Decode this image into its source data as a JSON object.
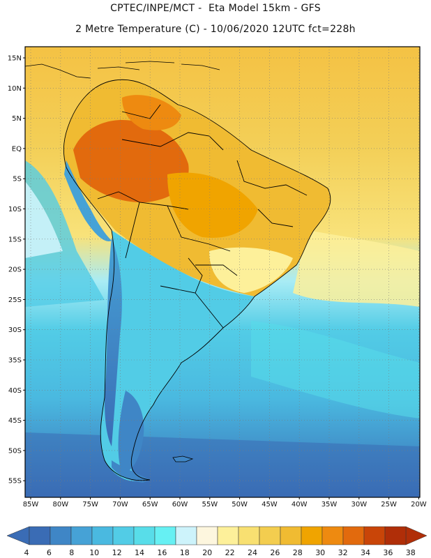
{
  "header": {
    "line1": "CPTEC/INPE/MCT -  Eta Model 15km - GFS",
    "line2": "2 Metre Temperature (C) - 10/06/2020 12UTC fct=228h"
  },
  "map": {
    "lat_labels": [
      "15N",
      "10N",
      "5N",
      "EQ",
      "5S",
      "10S",
      "15S",
      "20S",
      "25S",
      "30S",
      "35S",
      "40S",
      "45S",
      "50S",
      "55S"
    ],
    "lon_labels": [
      "85W",
      "80W",
      "75W",
      "70W",
      "65W",
      "60W",
      "55W",
      "50W",
      "45W",
      "40W",
      "35W",
      "30W",
      "25W",
      "20W"
    ]
  },
  "colorbar": {
    "labels": [
      "4",
      "6",
      "8",
      "10",
      "12",
      "14",
      "16",
      "18",
      "20",
      "22",
      "24",
      "26",
      "28",
      "30",
      "32",
      "34",
      "36",
      "38"
    ],
    "colors": [
      "#3a6cb5",
      "#3f86c6",
      "#46a2d6",
      "#4ab9e0",
      "#52cce6",
      "#58dde9",
      "#66f0f3",
      "#cdf3fb",
      "#fdf6de",
      "#fdf09a",
      "#f8e071",
      "#f3cd4f",
      "#f0bb32",
      "#f0a400",
      "#ee8a10",
      "#e26a0d",
      "#c94508",
      "#b02e08"
    ]
  }
}
